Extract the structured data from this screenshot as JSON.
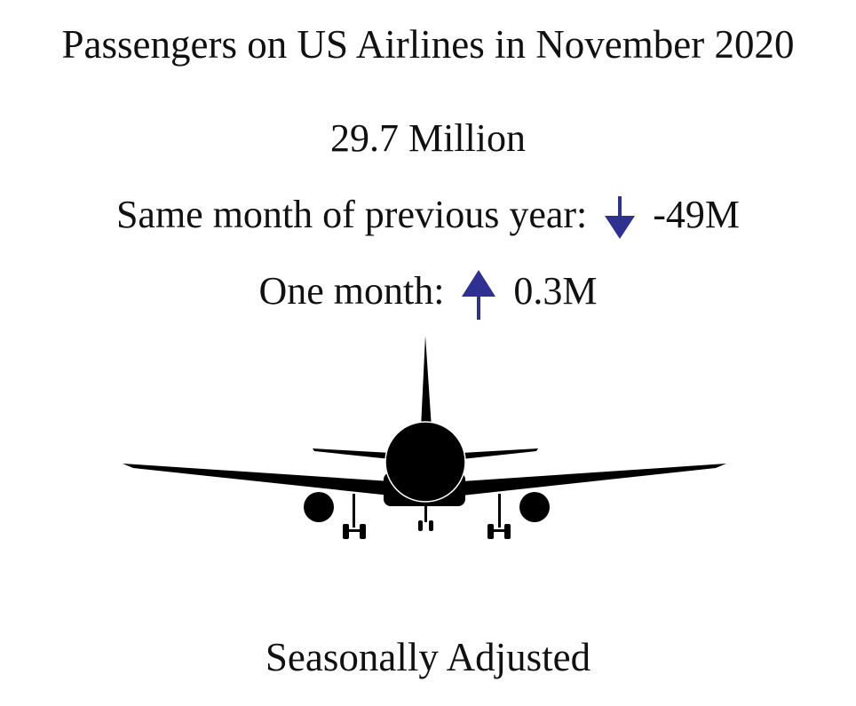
{
  "title": "Passengers on US Airlines in November 2020",
  "headline": {
    "value": "29.7 Million"
  },
  "year_over_year": {
    "label": "Same month of previous year:",
    "direction": "down",
    "icon": "arrow-down-icon",
    "change": "-49M"
  },
  "month_over_month": {
    "label": "One month:",
    "direction": "up",
    "icon": "arrow-up-icon",
    "change": "0.3M"
  },
  "footer": "Seasonally Adjusted",
  "colors": {
    "arrow": "#2e3192",
    "text": "#111111",
    "plane": "#000000"
  },
  "illustration": "airplane-icon"
}
